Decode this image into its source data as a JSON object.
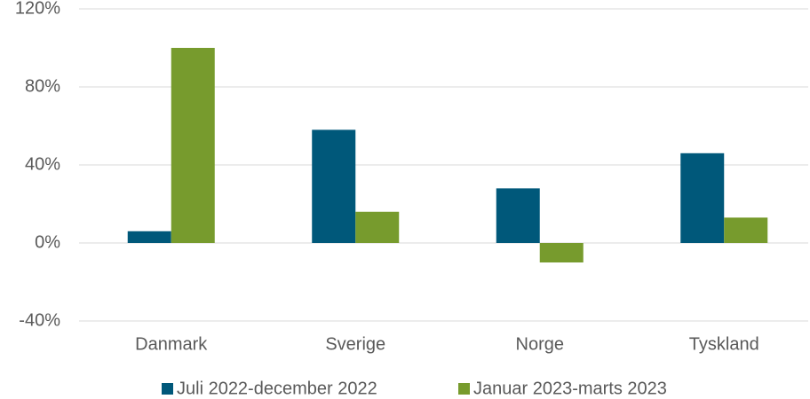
{
  "chart_data": {
    "type": "bar",
    "categories": [
      "Danmark",
      "Sverige",
      "Norge",
      "Tyskland"
    ],
    "series": [
      {
        "name": "Juli 2022-december 2022",
        "color": "#00587a",
        "values": [
          6,
          58,
          28,
          46
        ]
      },
      {
        "name": "Januar 2023-marts 2023",
        "color": "#779b2d",
        "values": [
          100,
          16,
          -10,
          13
        ]
      }
    ],
    "ylim": [
      -40,
      120
    ],
    "yticks": [
      {
        "value": -40,
        "label": "-40%"
      },
      {
        "value": 0,
        "label": "0%"
      },
      {
        "value": 40,
        "label": "40%"
      },
      {
        "value": 80,
        "label": "80%"
      },
      {
        "value": 120,
        "label": "120%"
      }
    ],
    "grid": true,
    "legend": "bottom"
  }
}
